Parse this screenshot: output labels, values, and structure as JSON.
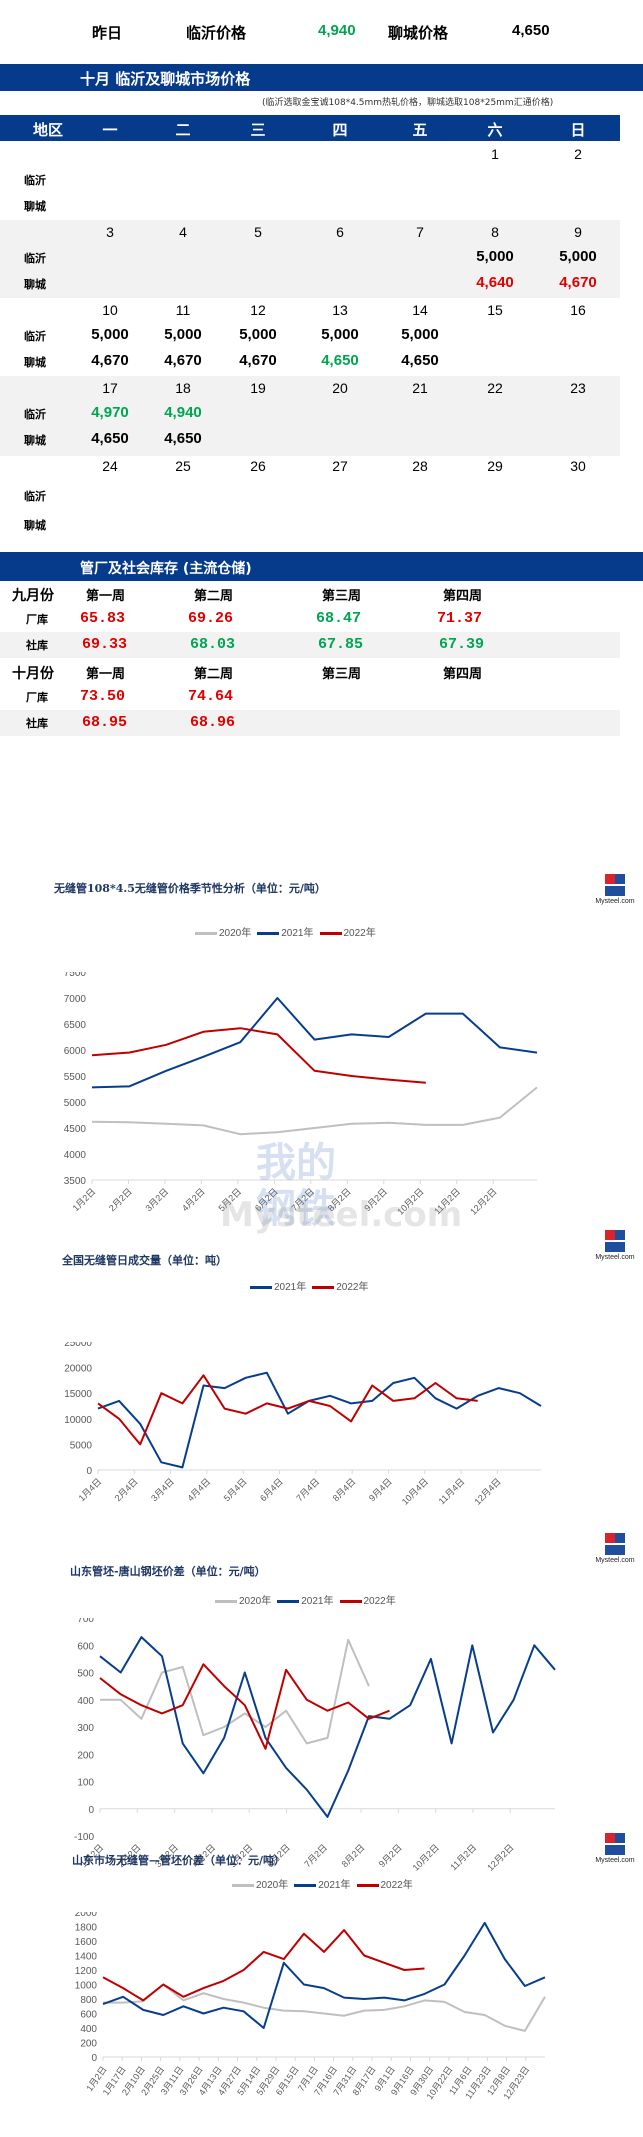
{
  "yesterday": {
    "label": "昨日",
    "linyi_label": "临沂价格",
    "linyi_value": "4,940",
    "liaocheng_label": "聊城价格",
    "liaocheng_value": "4,650"
  },
  "calendar": {
    "title": "十月  临沂及聊城市场价格",
    "note": "(临沂选取金宝诚108*4.5mm热轧价格，聊城选取108*25mm汇通价格)",
    "headers": [
      "地区",
      "一",
      "二",
      "三",
      "四",
      "五",
      "六",
      "日"
    ],
    "row_labels": {
      "linyi": "临沂",
      "liaocheng": "聊城"
    },
    "weeks": [
      {
        "days": [
          "",
          "",
          "",
          "",
          "",
          "1",
          "2"
        ],
        "linyi": [
          "",
          "",
          "",
          "",
          "",
          "",
          ""
        ],
        "liaocheng": [
          "",
          "",
          "",
          "",
          "",
          "",
          ""
        ]
      },
      {
        "days": [
          "3",
          "4",
          "5",
          "6",
          "7",
          "8",
          "9"
        ],
        "linyi": [
          "",
          "",
          "",
          "",
          "",
          "5,000",
          "5,000"
        ],
        "liaocheng": [
          "",
          "",
          "",
          "",
          "",
          "4,640",
          "4,670"
        ]
      },
      {
        "days": [
          "10",
          "11",
          "12",
          "13",
          "14",
          "15",
          "16"
        ],
        "linyi": [
          "5,000",
          "5,000",
          "5,000",
          "5,000",
          "5,000",
          "",
          ""
        ],
        "liaocheng": [
          "4,670",
          "4,670",
          "4,670",
          "4,650",
          "4,650",
          "",
          ""
        ]
      },
      {
        "days": [
          "17",
          "18",
          "19",
          "20",
          "21",
          "22",
          "23"
        ],
        "linyi": [
          "4,970",
          "4,940",
          "",
          "",
          "",
          "",
          ""
        ],
        "liaocheng": [
          "4,650",
          "4,650",
          "",
          "",
          "",
          "",
          ""
        ]
      },
      {
        "days": [
          "24",
          "25",
          "26",
          "27",
          "28",
          "29",
          "30"
        ],
        "linyi": [
          "",
          "",
          "",
          "",
          "",
          "",
          ""
        ],
        "liaocheng": [
          "",
          "",
          "",
          "",
          "",
          "",
          ""
        ]
      }
    ]
  },
  "inventory": {
    "title": "管厂及社会库存 (主流仓储)",
    "months": [
      {
        "label": "九月份",
        "weeks": [
          "第一周",
          "第二周",
          "第三周",
          "第四周"
        ],
        "factory_label": "厂库",
        "factory": [
          "65.83",
          "69.26",
          "68.47",
          "71.37"
        ],
        "factory_colors": [
          "red",
          "red",
          "green",
          "red"
        ],
        "social_label": "社库",
        "social": [
          "69.33",
          "68.03",
          "67.85",
          "67.39"
        ],
        "social_colors": [
          "red",
          "green",
          "green",
          "green"
        ]
      },
      {
        "label": "十月份",
        "weeks": [
          "第一周",
          "第二周",
          "第三周",
          "第四周"
        ],
        "factory_label": "厂库",
        "factory": [
          "73.50",
          "74.64",
          "",
          ""
        ],
        "factory_colors": [
          "red",
          "red",
          "",
          ""
        ],
        "social_label": "社库",
        "social": [
          "68.95",
          "68.96",
          "",
          ""
        ],
        "social_colors": [
          "red",
          "red",
          "",
          ""
        ]
      }
    ]
  },
  "colors": {
    "y2020": "#bfbfbf",
    "y2021": "#073e8c",
    "y2022": "#c00000",
    "band": "#063a8a",
    "green": "#00a550",
    "red": "#e00000"
  },
  "logo_text": "Mysteel.com",
  "watermark": {
    "cn": "我的钢铁",
    "en": "Mysteel.com"
  },
  "chart_data": [
    {
      "type": "line",
      "title": "无缝管108*4.5无缝管价格季节性分析（单位：元/吨）",
      "legend": [
        "2020年",
        "2021年",
        "2022年"
      ],
      "categories": [
        "1月2日",
        "2月2日",
        "3月2日",
        "4月2日",
        "5月2日",
        "6月2日",
        "7月2日",
        "8月2日",
        "9月2日",
        "10月2日",
        "11月2日",
        "12月2日"
      ],
      "ylim": [
        3500,
        7500
      ],
      "yticks": [
        3500,
        4000,
        4500,
        5000,
        5500,
        6000,
        6500,
        7000,
        7500
      ],
      "series": [
        {
          "name": "2020年",
          "values": [
            4620,
            4610,
            4580,
            4550,
            4380,
            4420,
            4500,
            4580,
            4600,
            4560,
            4560,
            4700,
            5280
          ]
        },
        {
          "name": "2021年",
          "values": [
            5280,
            5300,
            5600,
            5870,
            6150,
            7000,
            6200,
            6300,
            6250,
            6700,
            6700,
            6050,
            5950
          ]
        },
        {
          "name": "2022年",
          "values": [
            5900,
            5950,
            6100,
            6350,
            6420,
            6300,
            5600,
            5500,
            5430,
            5370
          ]
        }
      ]
    },
    {
      "type": "line",
      "title": "全国无缝管日成交量（单位：吨）",
      "legend": [
        "2021年",
        "2022年"
      ],
      "categories": [
        "1月4日",
        "2月4日",
        "3月4日",
        "4月4日",
        "5月4日",
        "6月4日",
        "7月4日",
        "8月4日",
        "9月4日",
        "10月4日",
        "11月4日",
        "12月4日"
      ],
      "ylim": [
        0,
        25000
      ],
      "yticks": [
        0,
        5000,
        10000,
        15000,
        20000,
        25000
      ],
      "series": [
        {
          "name": "2021年",
          "values": [
            12000,
            13500,
            9000,
            1500,
            500,
            16500,
            16000,
            18000,
            19000,
            11000,
            13500,
            14500,
            13000,
            13500,
            17000,
            18000,
            14000,
            12000,
            14500,
            16000,
            15000,
            12500
          ]
        },
        {
          "name": "2022年",
          "values": [
            13000,
            10000,
            5000,
            15000,
            13000,
            18500,
            12000,
            11000,
            13000,
            12000,
            13500,
            12500,
            9500,
            16500,
            13500,
            14000,
            17000,
            14000,
            13500
          ]
        }
      ]
    },
    {
      "type": "line",
      "title": "山东管坯-唐山钢坯价差（单位：元/吨）",
      "legend": [
        "2020年",
        "2021年",
        "2022年"
      ],
      "categories": [
        "1月2日",
        "2月2日",
        "3月2日",
        "4月2日",
        "5月2日",
        "6月2日",
        "7月2日",
        "8月2日",
        "9月2日",
        "10月2日",
        "11月2日",
        "12月2日"
      ],
      "ylim": [
        -100,
        700
      ],
      "yticks": [
        -100,
        0,
        100,
        200,
        300,
        400,
        500,
        600,
        700
      ],
      "series": [
        {
          "name": "2020年",
          "values": [
            400,
            400,
            330,
            500,
            520,
            270,
            300,
            350,
            300,
            360,
            240,
            260,
            620,
            450
          ]
        },
        {
          "name": "2021年",
          "values": [
            560,
            500,
            630,
            560,
            240,
            130,
            260,
            500,
            260,
            150,
            70,
            -30,
            140,
            340,
            330,
            380,
            550,
            240,
            600,
            280,
            400,
            600,
            510
          ]
        },
        {
          "name": "2022年",
          "values": [
            480,
            420,
            380,
            350,
            380,
            530,
            450,
            380,
            220,
            510,
            400,
            360,
            390,
            330,
            360
          ]
        }
      ]
    },
    {
      "type": "line",
      "title": "山东市场无缝管—管坯价差（单位：元/吨）",
      "legend": [
        "2020年",
        "2021年",
        "2022年"
      ],
      "categories": [
        "1月2日",
        "1月17日",
        "2月10日",
        "2月25日",
        "3月11日",
        "3月26日",
        "4月13日",
        "4月27日",
        "5月14日",
        "5月29日",
        "6月15日",
        "7月1日",
        "7月16日",
        "7月31日",
        "8月17日",
        "9月1日",
        "9月16日",
        "9月30日",
        "10月22日",
        "11月6日",
        "11月23日",
        "12月8日",
        "12月23日"
      ],
      "ylim": [
        0,
        2000
      ],
      "yticks": [
        0,
        200,
        400,
        600,
        800,
        1000,
        1200,
        1400,
        1600,
        1800,
        2000
      ],
      "series": [
        {
          "name": "2020年",
          "values": [
            750,
            750,
            770,
            1000,
            780,
            880,
            800,
            750,
            680,
            640,
            630,
            600,
            570,
            640,
            650,
            700,
            780,
            760,
            620,
            580,
            430,
            360,
            830
          ]
        },
        {
          "name": "2021年",
          "values": [
            730,
            830,
            650,
            580,
            700,
            600,
            680,
            630,
            400,
            1300,
            1000,
            950,
            820,
            800,
            820,
            780,
            870,
            1000,
            1400,
            1850,
            1350,
            980,
            1100
          ]
        },
        {
          "name": "2022年",
          "values": [
            1100,
            950,
            780,
            1000,
            830,
            950,
            1050,
            1200,
            1450,
            1350,
            1700,
            1450,
            1750,
            1400,
            1300,
            1200,
            1220
          ]
        }
      ]
    }
  ]
}
